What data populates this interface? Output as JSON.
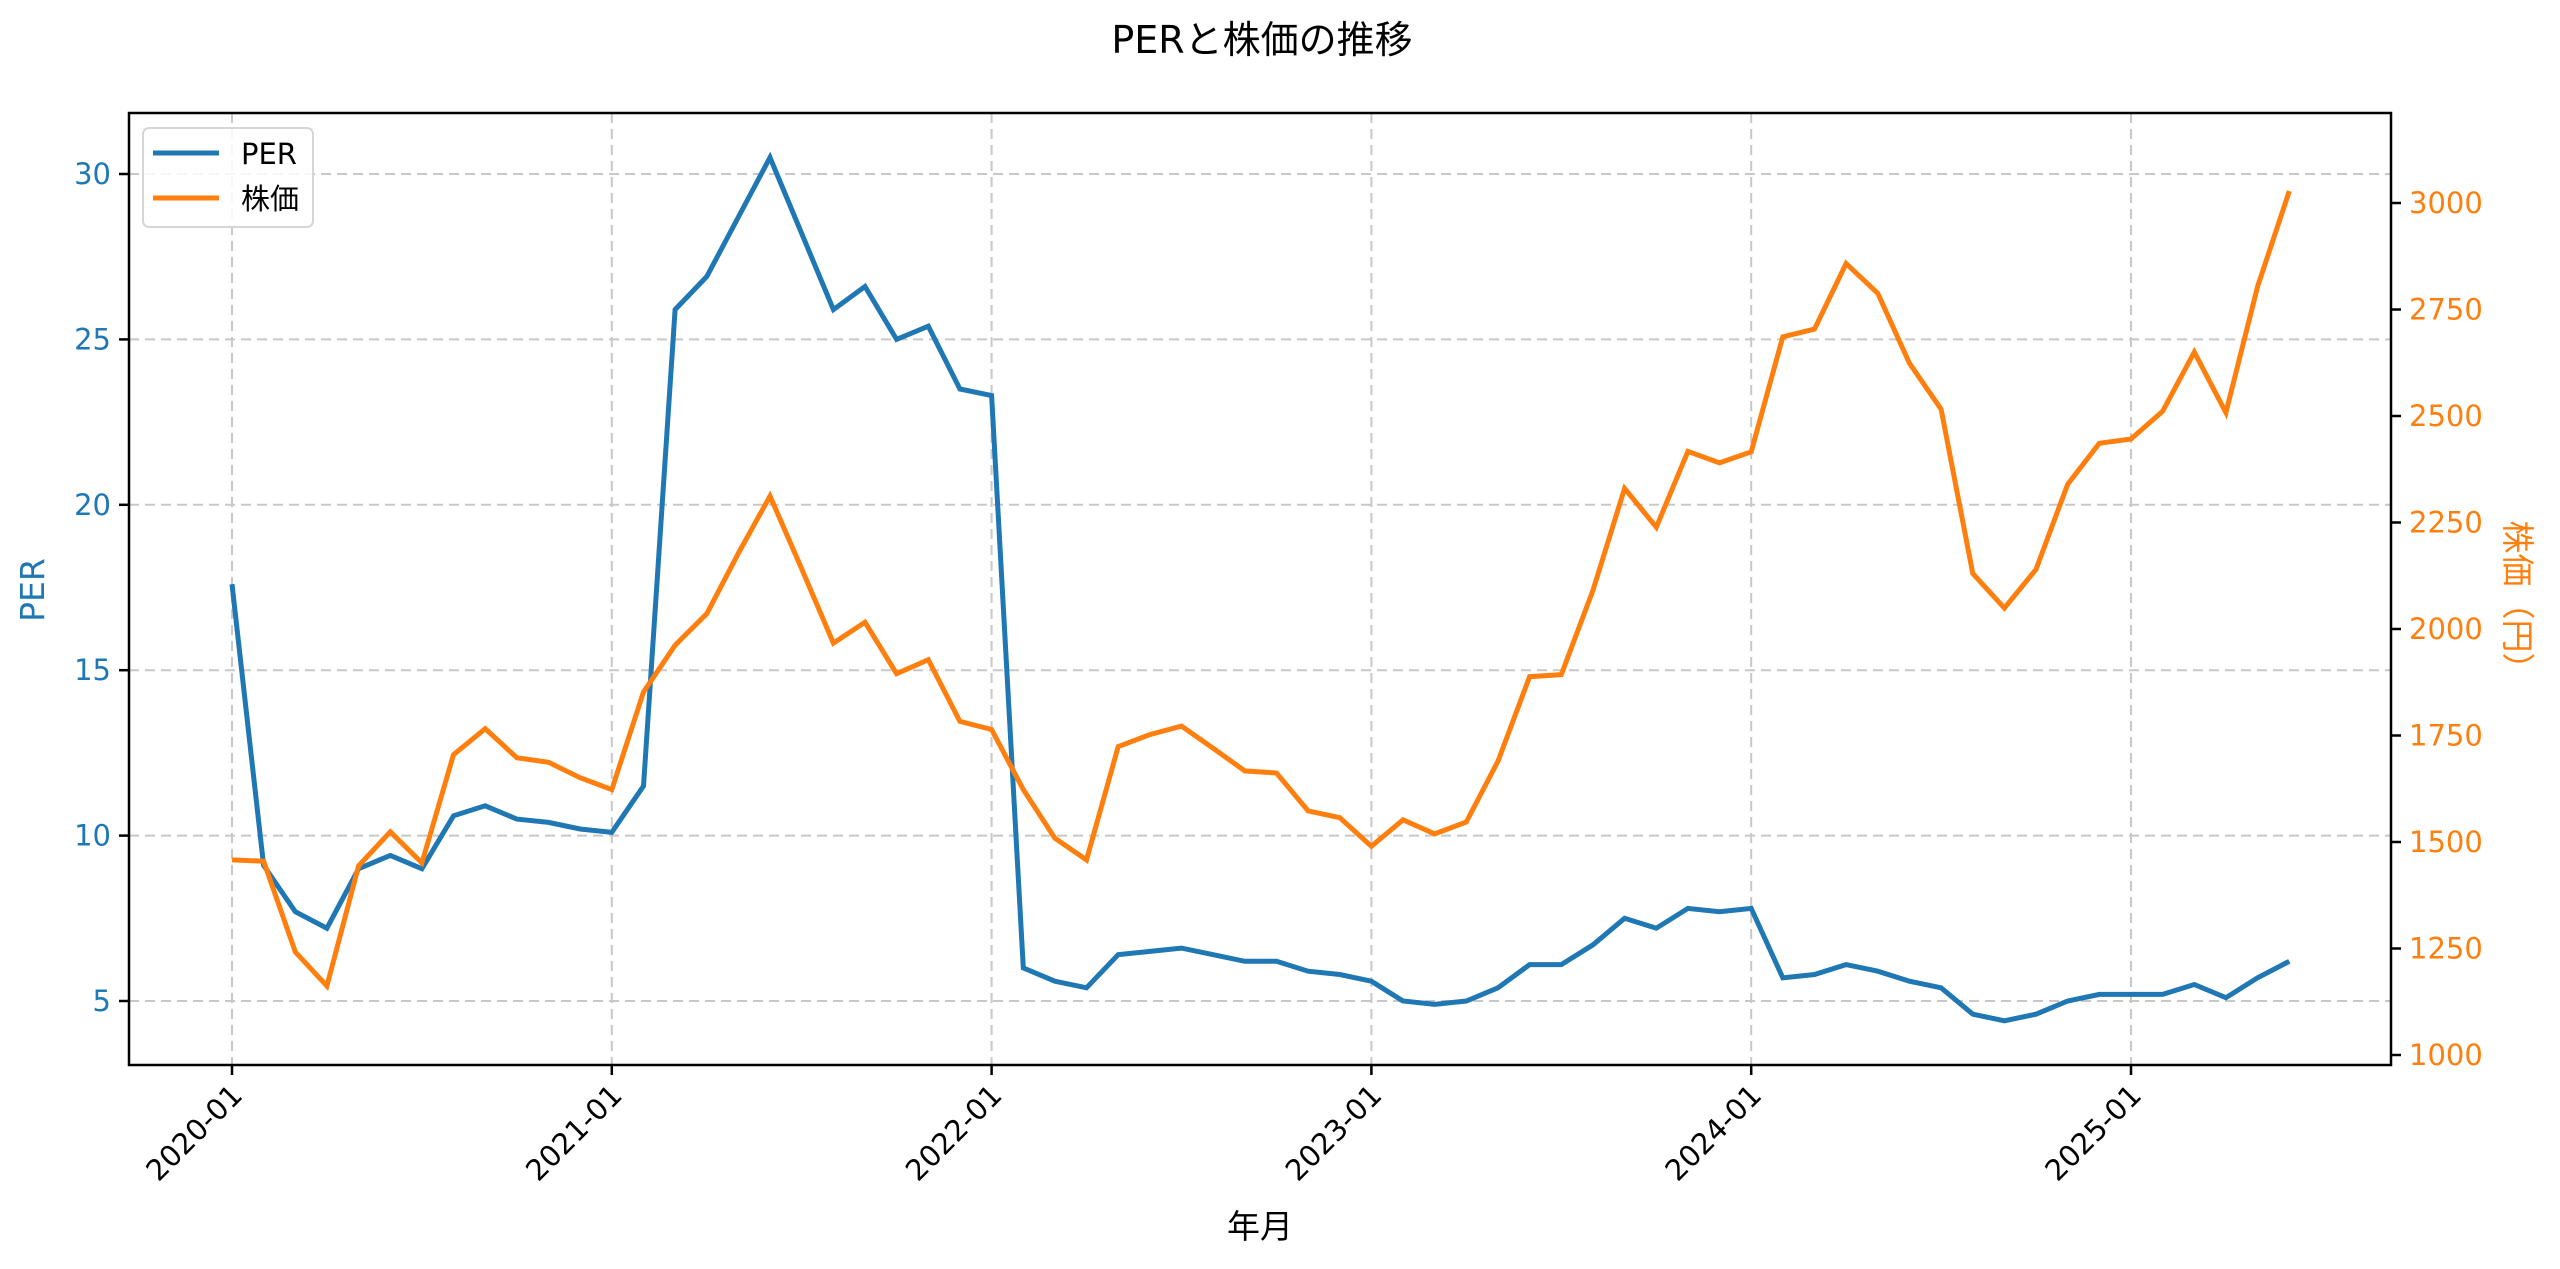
{
  "title": "PERと株価の推移",
  "colors": {
    "per": "#1f77b4",
    "price": "#ff7f0e",
    "grid": "#c8c8c8",
    "axis": "#000000"
  },
  "legend": {
    "items": [
      {
        "label": "PER",
        "color": "#1f77b4"
      },
      {
        "label": "株価",
        "color": "#ff7f0e"
      }
    ]
  },
  "axes": {
    "xlabel": "年月",
    "ylabel_left": "PER",
    "ylabel_right": "株価（円）",
    "left_ticks": [
      "5",
      "10",
      "15",
      "20",
      "25",
      "30"
    ],
    "right_ticks": [
      "1000",
      "1250",
      "1500",
      "1750",
      "2000",
      "2250",
      "2500",
      "2750",
      "3000"
    ],
    "x_ticks": [
      "2020-01",
      "2021-01",
      "2022-01",
      "2023-01",
      "2024-01",
      "2025-01"
    ]
  },
  "chart_data": {
    "type": "line",
    "title": "PERと株価の推移",
    "xlabel": "年月",
    "ylabel": "PER",
    "ylabel_right": "株価（円）",
    "ylim": [
      3.1,
      31.8
    ],
    "ylim_right": [
      980,
      3180
    ],
    "grid": true,
    "legend_position": "upper left",
    "x_tick_labels": [
      "2020-01",
      "2021-01",
      "2022-01",
      "2023-01",
      "2024-01",
      "2025-01"
    ],
    "x": [
      "2020-01",
      "2020-02",
      "2020-03",
      "2020-04",
      "2020-05",
      "2020-06",
      "2020-07",
      "2020-08",
      "2020-09",
      "2020-10",
      "2020-11",
      "2020-12",
      "2021-01",
      "2021-02",
      "2021-03",
      "2021-04",
      "2021-05",
      "2021-06",
      "2021-07",
      "2021-08",
      "2021-09",
      "2021-10",
      "2021-11",
      "2021-12",
      "2022-01",
      "2022-02",
      "2022-03",
      "2022-04",
      "2022-05",
      "2022-06",
      "2022-07",
      "2022-08",
      "2022-09",
      "2022-10",
      "2022-11",
      "2022-12",
      "2023-01",
      "2023-02",
      "2023-03",
      "2023-04",
      "2023-05",
      "2023-06",
      "2023-07",
      "2023-08",
      "2023-09",
      "2023-10",
      "2023-11",
      "2023-12",
      "2024-01",
      "2024-02",
      "2024-03",
      "2024-04",
      "2024-05",
      "2024-06",
      "2024-07",
      "2024-08",
      "2024-09",
      "2024-10",
      "2024-11",
      "2024-12",
      "2025-01",
      "2025-02",
      "2025-03",
      "2025-04",
      "2025-05",
      "2025-06"
    ],
    "series": [
      {
        "name": "PER",
        "axis": "left",
        "color": "#1f77b4",
        "values": [
          17.6,
          9.1,
          7.7,
          7.2,
          9.0,
          9.4,
          9.0,
          10.6,
          10.9,
          10.5,
          10.4,
          10.2,
          10.1,
          11.5,
          25.9,
          26.9,
          28.7,
          30.5,
          28.2,
          25.9,
          26.6,
          25.0,
          25.4,
          23.5,
          23.3,
          6.0,
          5.6,
          5.4,
          6.4,
          6.5,
          6.6,
          6.4,
          6.2,
          6.2,
          5.9,
          5.8,
          5.6,
          5.0,
          4.9,
          5.0,
          5.4,
          6.1,
          6.1,
          6.7,
          7.5,
          7.2,
          7.8,
          7.7,
          7.8,
          5.7,
          5.8,
          6.1,
          5.9,
          5.6,
          5.4,
          4.6,
          4.4,
          4.6,
          5.0,
          5.2,
          5.2,
          5.2,
          5.5,
          5.1,
          5.7,
          6.2
        ]
      },
      {
        "name": "株価",
        "axis": "right",
        "color": "#ff7f0e",
        "values": [
          1458,
          1455,
          1242,
          1162,
          1444,
          1524,
          1451,
          1705,
          1766,
          1698,
          1687,
          1651,
          1623,
          1852,
          1962,
          2036,
          2178,
          2312,
          2141,
          1967,
          2016,
          1895,
          1928,
          1783,
          1764,
          1623,
          1509,
          1458,
          1724,
          1752,
          1772,
          1720,
          1667,
          1662,
          1573,
          1557,
          1490,
          1552,
          1519,
          1547,
          1690,
          1888,
          1893,
          2091,
          2330,
          2239,
          2417,
          2390,
          2416,
          2686,
          2704,
          2858,
          2788,
          2624,
          2516,
          2130,
          2049,
          2140,
          2340,
          2436,
          2446,
          2511,
          2650,
          2508,
          2804,
          3028
        ]
      }
    ]
  }
}
